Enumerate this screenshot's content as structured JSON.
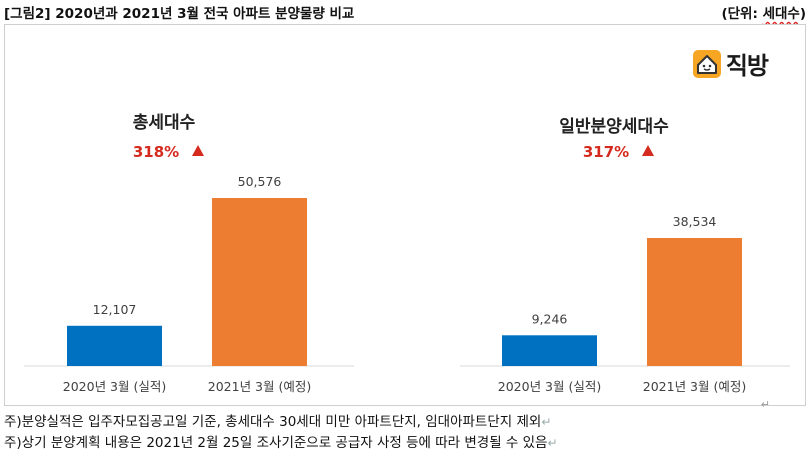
{
  "header": {
    "title": "[그림2] 2020년과 2021년 3월 전국 아파트 분양물량 비교",
    "unit_prefix": "(단위: ",
    "unit": "세대수",
    "unit_suffix": ")"
  },
  "logo": {
    "text": "직방",
    "icon": "house-icon"
  },
  "colors": {
    "actual": "#0070C0",
    "planned": "#ED7D31",
    "change": "#D52B1E",
    "arrow": "#D52B1E"
  },
  "chart_data": [
    {
      "type": "bar",
      "title": "총세대수",
      "change_label": "318%",
      "categories": [
        "2020년 3월 (실적)",
        "2021년 3월 (예정)"
      ],
      "values": [
        12107,
        50576
      ],
      "value_labels": [
        "12,107",
        "50,576"
      ],
      "ylim": [
        0,
        60000
      ]
    },
    {
      "type": "bar",
      "title": "일반분양세대수",
      "change_label": "317%",
      "categories": [
        "2020년 3월 (실적)",
        "2021년 3월 (예정)"
      ],
      "values": [
        9246,
        38534
      ],
      "value_labels": [
        "9,246",
        "38,534"
      ],
      "ylim": [
        0,
        60000
      ]
    }
  ],
  "notes": [
    "주)분양실적은 입주자모집공고일 기준, 총세대수 30세대 미만 아파트단지, 임대아파트단지 제외",
    "주)상기 분양계획 내용은 2021년 2월 25일 조사기준으로 공급자 사정 등에 따라 변경될 수 있음"
  ]
}
